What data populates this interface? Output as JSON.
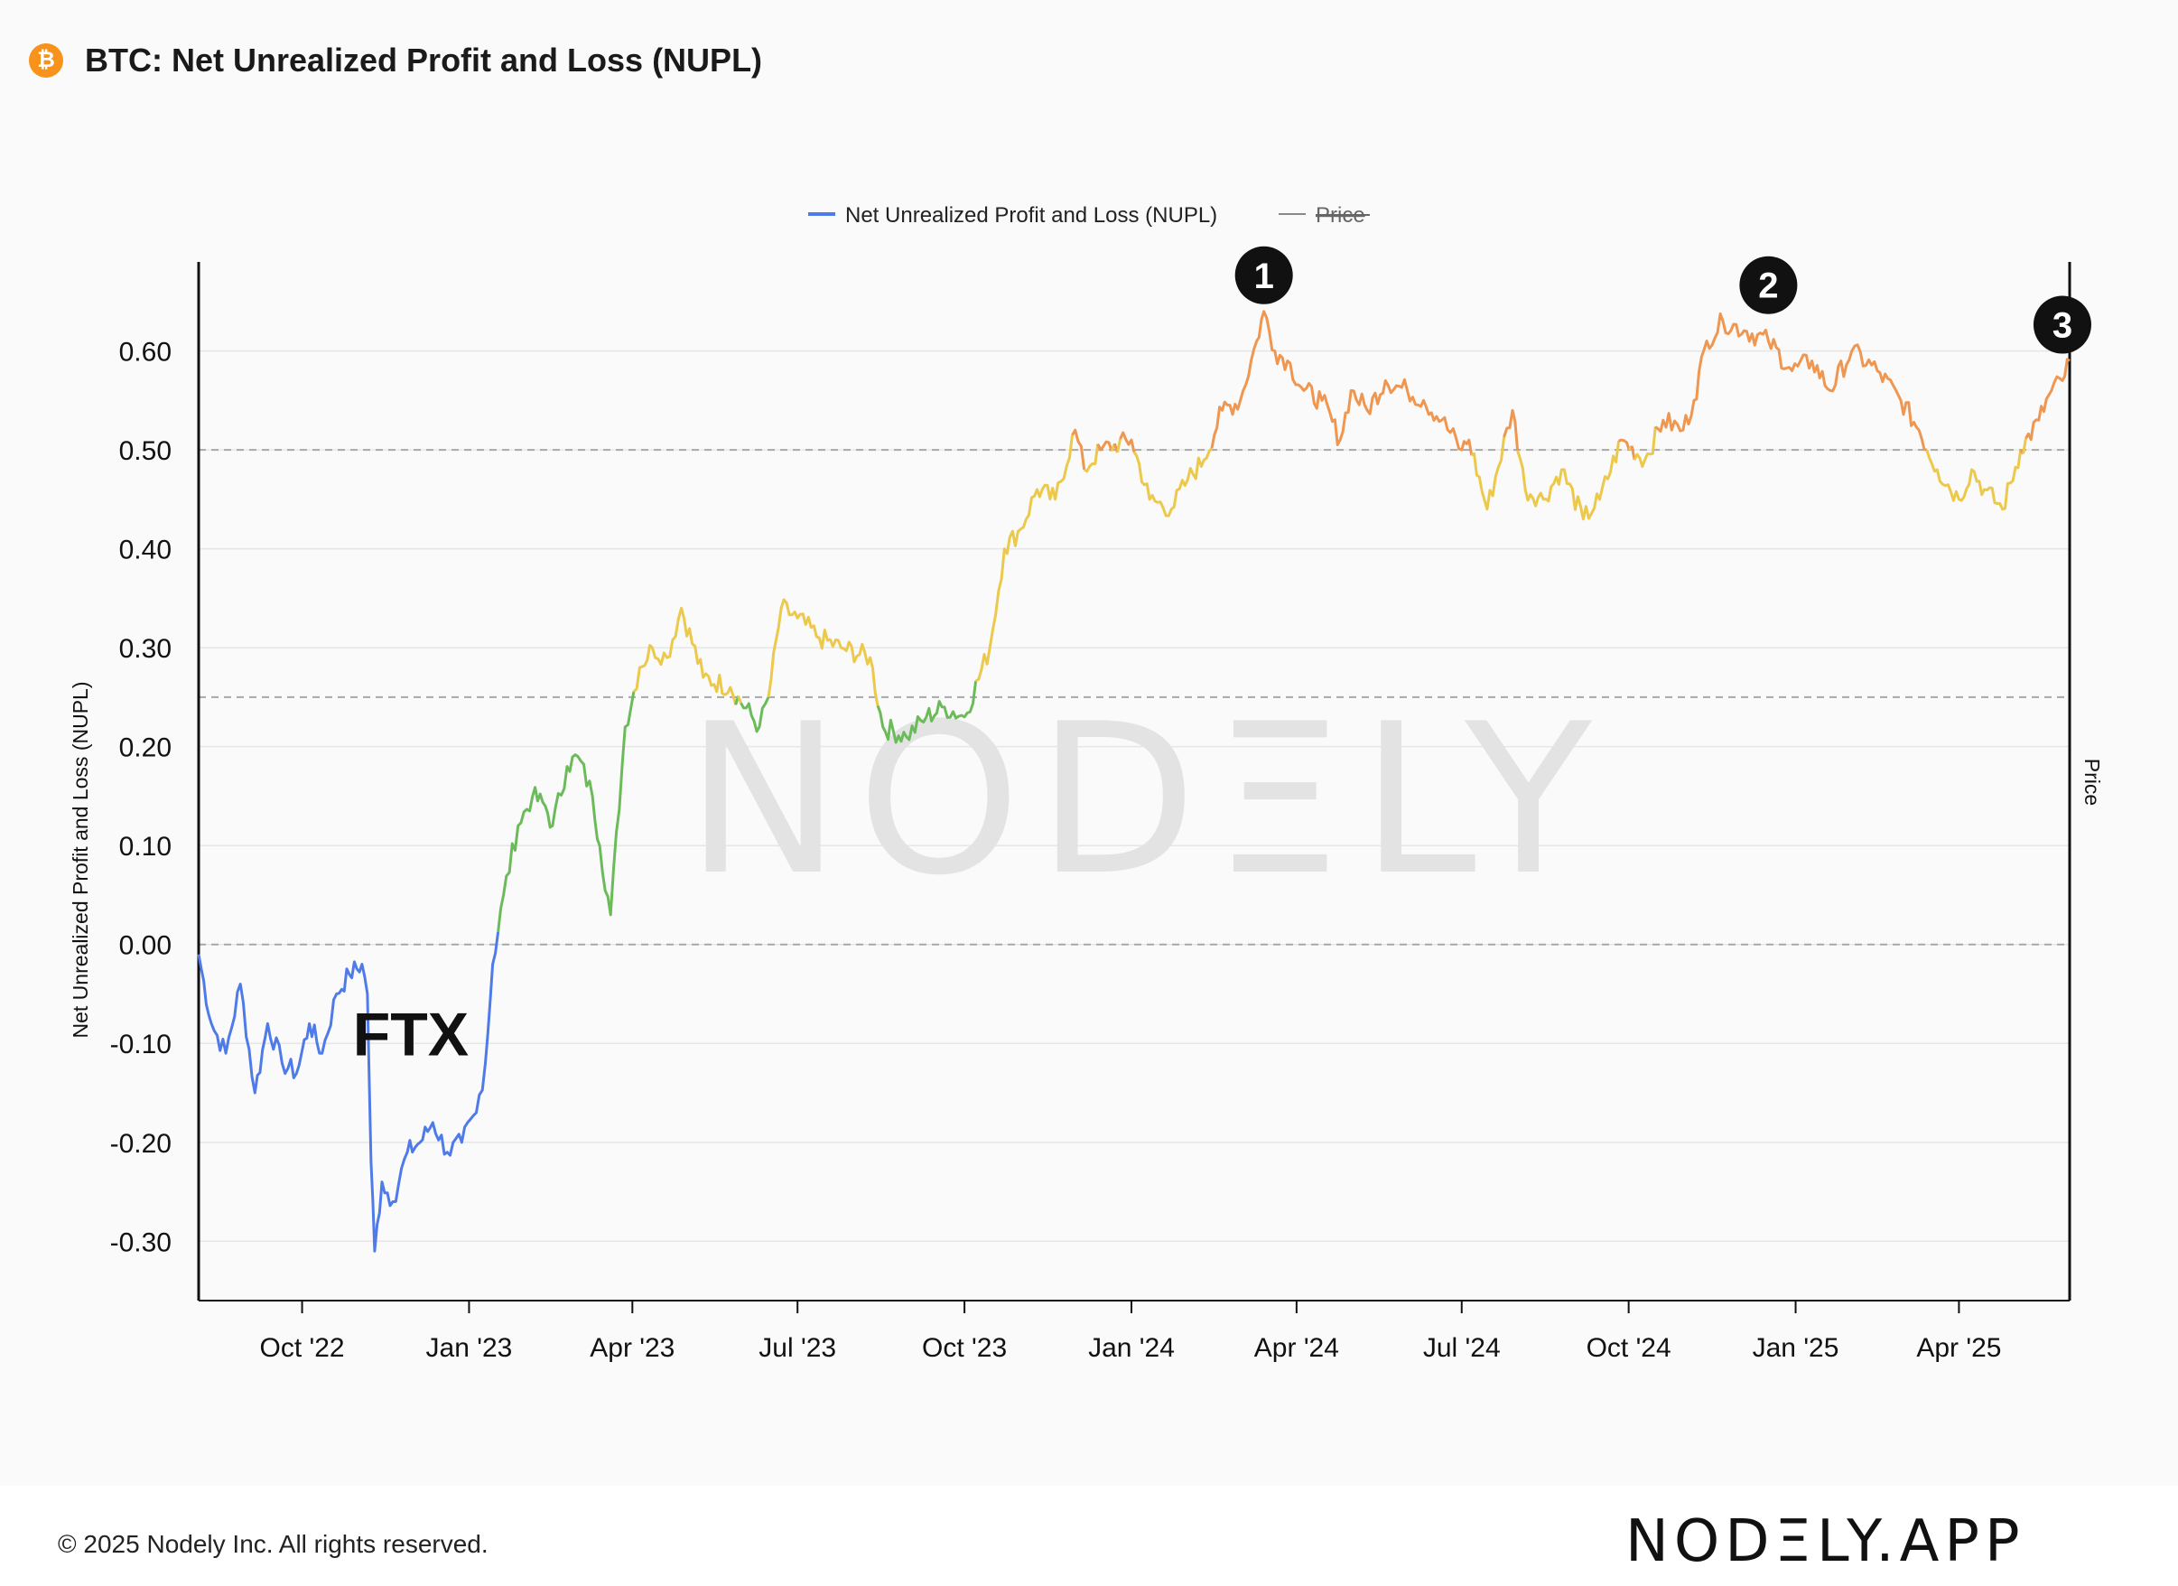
{
  "header": {
    "icon": "bitcoin-icon",
    "icon_glyph": "₿",
    "title": "BTC: Net Unrealized Profit and Loss (NUPL)"
  },
  "footer": {
    "copyright": "© 2025 Nodely Inc. All rights reserved.",
    "brand": "NODΞLY.APP"
  },
  "watermark": "NODΞLY",
  "chart_data": {
    "type": "line",
    "title": "BTC: Net Unrealized Profit and Loss (NUPL)",
    "ylabel": "Net Unrealized Profit and Loss (NUPL)",
    "y2label": "Price",
    "ylim": [
      -0.36,
      0.69
    ],
    "yticks": [
      -0.3,
      -0.2,
      -0.1,
      0.0,
      0.1,
      0.2,
      0.3,
      0.4,
      0.5,
      0.6
    ],
    "ytick_labels": [
      "-0.30",
      "-0.20",
      "-0.10",
      "0.00",
      "0.10",
      "0.20",
      "0.30",
      "0.40",
      "0.50",
      "0.60"
    ],
    "xlim": [
      "2022-08-05",
      "2025-06-01"
    ],
    "xticks": [
      "2022-10-01",
      "2023-01-01",
      "2023-04-01",
      "2023-07-01",
      "2023-10-01",
      "2024-01-01",
      "2024-04-01",
      "2024-07-01",
      "2024-10-01",
      "2025-01-01",
      "2025-04-01"
    ],
    "xtick_labels": [
      "Oct '22",
      "Jan '23",
      "Apr '23",
      "Jul '23",
      "Oct '23",
      "Jan '24",
      "Apr '24",
      "Jul '24",
      "Oct '24",
      "Jan '25",
      "Apr '25"
    ],
    "grid": true,
    "reference_lines": [
      0.0,
      0.25,
      0.5
    ],
    "legend_position": "top-center",
    "legend": [
      {
        "name": "Net Unrealized Profit and Loss (NUPL)",
        "color": "#4f7be8",
        "visible": true
      },
      {
        "name": "Price",
        "color": "#888888",
        "visible": false
      }
    ],
    "color_zones": [
      {
        "below": 0.0,
        "color": "#4f7be8"
      },
      {
        "below": 0.25,
        "color": "#6cbb5a"
      },
      {
        "below": 0.5,
        "color": "#ecc94b"
      },
      {
        "below": 1.0,
        "color": "#ef9650"
      }
    ],
    "series": [
      {
        "name": "Net Unrealized Profit and Loss (NUPL)",
        "x": [
          "2022-08-05",
          "2022-08-12",
          "2022-08-20",
          "2022-08-28",
          "2022-09-05",
          "2022-09-12",
          "2022-09-20",
          "2022-09-28",
          "2022-10-05",
          "2022-10-12",
          "2022-10-20",
          "2022-10-27",
          "2022-11-03",
          "2022-11-06",
          "2022-11-08",
          "2022-11-10",
          "2022-11-14",
          "2022-11-20",
          "2022-11-28",
          "2022-12-05",
          "2022-12-12",
          "2022-12-20",
          "2022-12-28",
          "2023-01-05",
          "2023-01-10",
          "2023-01-14",
          "2023-01-20",
          "2023-01-28",
          "2023-02-05",
          "2023-02-12",
          "2023-02-16",
          "2023-02-24",
          "2023-03-02",
          "2023-03-10",
          "2023-03-14",
          "2023-03-20",
          "2023-03-28",
          "2023-04-05",
          "2023-04-12",
          "2023-04-20",
          "2023-04-28",
          "2023-05-10",
          "2023-05-25",
          "2023-06-10",
          "2023-06-15",
          "2023-06-22",
          "2023-07-01",
          "2023-07-13",
          "2023-07-25",
          "2023-08-10",
          "2023-08-17",
          "2023-08-30",
          "2023-09-10",
          "2023-09-20",
          "2023-10-01",
          "2023-10-15",
          "2023-10-23",
          "2023-11-01",
          "2023-11-10",
          "2023-11-20",
          "2023-12-01",
          "2023-12-06",
          "2023-12-15",
          "2024-01-01",
          "2024-01-11",
          "2024-01-23",
          "2024-02-01",
          "2024-02-10",
          "2024-02-20",
          "2024-03-01",
          "2024-03-10",
          "2024-03-14",
          "2024-03-20",
          "2024-03-27",
          "2024-04-05",
          "2024-04-15",
          "2024-04-25",
          "2024-05-01",
          "2024-05-10",
          "2024-05-20",
          "2024-06-01",
          "2024-06-10",
          "2024-06-20",
          "2024-07-01",
          "2024-07-05",
          "2024-07-15",
          "2024-07-29",
          "2024-08-05",
          "2024-08-15",
          "2024-08-25",
          "2024-09-06",
          "2024-09-15",
          "2024-09-27",
          "2024-10-10",
          "2024-10-20",
          "2024-10-31",
          "2024-11-06",
          "2024-11-13",
          "2024-11-22",
          "2024-12-05",
          "2024-12-17",
          "2024-12-30",
          "2025-01-10",
          "2025-01-20",
          "2025-02-01",
          "2025-02-15",
          "2025-02-28",
          "2025-03-10",
          "2025-03-20",
          "2025-04-01",
          "2025-04-08",
          "2025-04-15",
          "2025-04-25",
          "2025-05-05",
          "2025-05-15",
          "2025-05-22",
          "2025-05-28",
          "2025-06-01"
        ],
        "values": [
          -0.01,
          -0.08,
          -0.11,
          -0.04,
          -0.15,
          -0.08,
          -0.12,
          -0.13,
          -0.08,
          -0.11,
          -0.05,
          -0.03,
          -0.02,
          -0.05,
          -0.22,
          -0.31,
          -0.24,
          -0.26,
          -0.21,
          -0.2,
          -0.18,
          -0.21,
          -0.2,
          -0.17,
          -0.12,
          -0.02,
          0.05,
          0.12,
          0.15,
          0.14,
          0.12,
          0.18,
          0.19,
          0.15,
          0.1,
          0.03,
          0.22,
          0.28,
          0.3,
          0.29,
          0.34,
          0.27,
          0.26,
          0.22,
          0.25,
          0.34,
          0.33,
          0.31,
          0.3,
          0.29,
          0.22,
          0.21,
          0.23,
          0.24,
          0.23,
          0.3,
          0.4,
          0.42,
          0.46,
          0.45,
          0.52,
          0.48,
          0.5,
          0.51,
          0.45,
          0.44,
          0.47,
          0.49,
          0.54,
          0.55,
          0.61,
          0.64,
          0.6,
          0.59,
          0.56,
          0.55,
          0.51,
          0.56,
          0.54,
          0.57,
          0.56,
          0.55,
          0.53,
          0.5,
          0.51,
          0.44,
          0.54,
          0.46,
          0.45,
          0.48,
          0.43,
          0.45,
          0.51,
          0.49,
          0.53,
          0.52,
          0.55,
          0.61,
          0.63,
          0.62,
          0.61,
          0.58,
          0.59,
          0.56,
          0.6,
          0.58,
          0.55,
          0.52,
          0.48,
          0.45,
          0.48,
          0.46,
          0.44,
          0.5,
          0.53,
          0.56,
          0.57,
          0.59
        ]
      }
    ],
    "annotations": [
      {
        "label": "1",
        "x": "2024-03-14",
        "y": 0.64
      },
      {
        "label": "2",
        "x": "2024-12-17",
        "y": 0.63
      },
      {
        "label": "3",
        "x": "2025-05-28",
        "y": 0.59
      },
      {
        "label": "FTX",
        "x": "2022-11-10",
        "y": -0.09
      }
    ]
  }
}
